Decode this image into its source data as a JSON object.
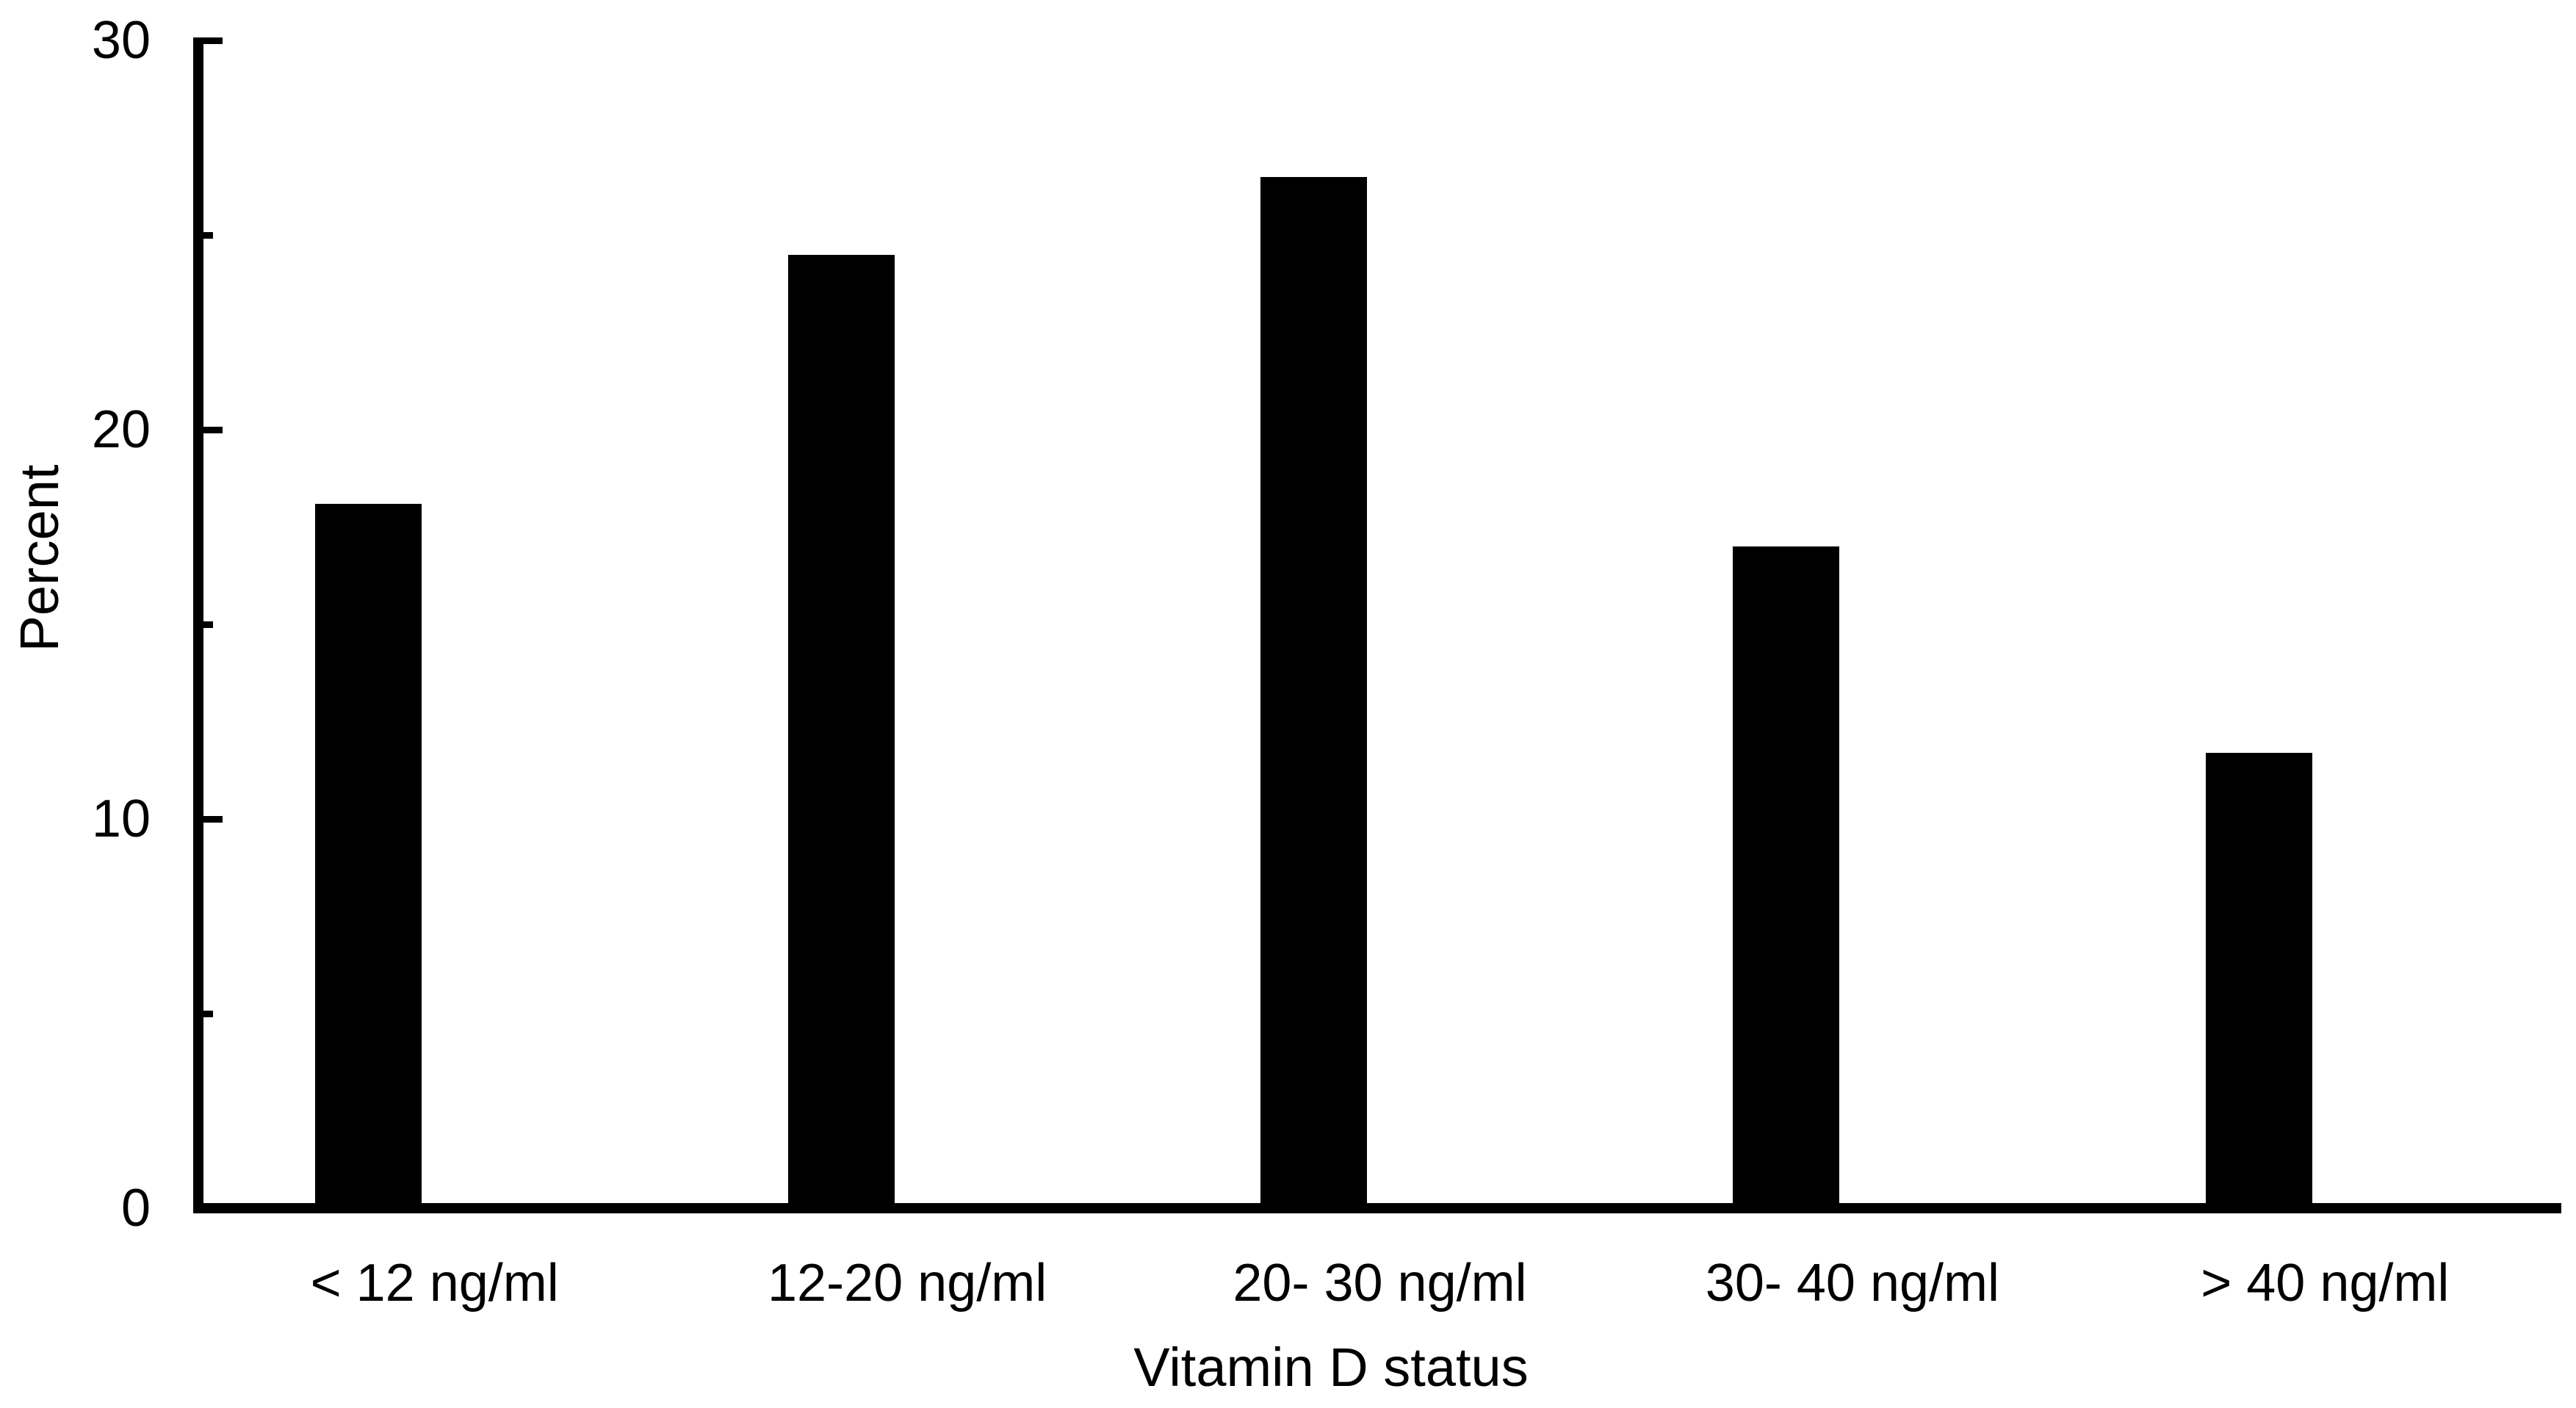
{
  "chart_data": {
    "type": "bar",
    "title": "",
    "categories": [
      "< 12 ng/ml",
      "12-20 ng/ml",
      "20- 30 ng/ml",
      "30- 40 ng/ml",
      "> 40 ng/ml"
    ],
    "values": [
      18.1,
      24.5,
      26.5,
      17.0,
      11.7
    ],
    "xlabel": "Vitamin D status",
    "ylabel": "Percent",
    "ylim": [
      0,
      30
    ],
    "ytick_values": [
      0,
      10,
      20,
      30
    ],
    "ytick_labels": [
      "0",
      "10",
      "20",
      "30"
    ],
    "minor_tick_values": [
      5,
      15,
      25
    ],
    "bar_color": "#000000",
    "axis_color": "#000000",
    "background_color": "#ffffff",
    "grid": false,
    "legend": false
  }
}
